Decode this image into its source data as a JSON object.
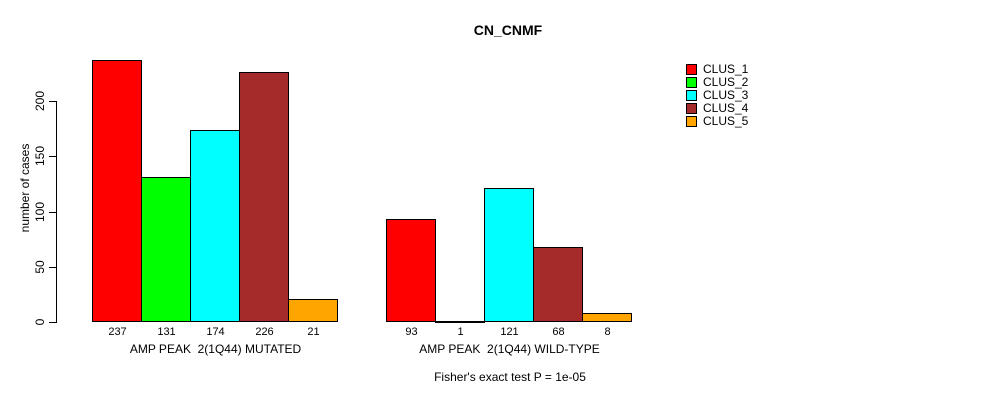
{
  "chart_data": {
    "type": "bar",
    "title": "CN_CNMF",
    "ylabel": "number of cases",
    "ylim": [
      0,
      240
    ],
    "yticks": [
      0,
      50,
      100,
      150,
      200
    ],
    "grid": false,
    "legend_position": "right",
    "categories": [
      "AMP PEAK  2(1Q44) MUTATED",
      "AMP PEAK  2(1Q44) WILD-TYPE"
    ],
    "series": [
      {
        "name": "CLUS_1",
        "color": "#FF0000",
        "values": [
          237,
          93
        ]
      },
      {
        "name": "CLUS_2",
        "color": "#00FF00",
        "values": [
          131,
          1
        ]
      },
      {
        "name": "CLUS_3",
        "color": "#00FFFF",
        "values": [
          174,
          121
        ]
      },
      {
        "name": "CLUS_4",
        "color": "#A52A2A",
        "values": [
          226,
          68
        ]
      },
      {
        "name": "CLUS_5",
        "color": "#FFA500",
        "values": [
          21,
          8
        ]
      }
    ],
    "bar_value_labels": true,
    "annotation": "Fisher's exact test P = 1e-05"
  }
}
